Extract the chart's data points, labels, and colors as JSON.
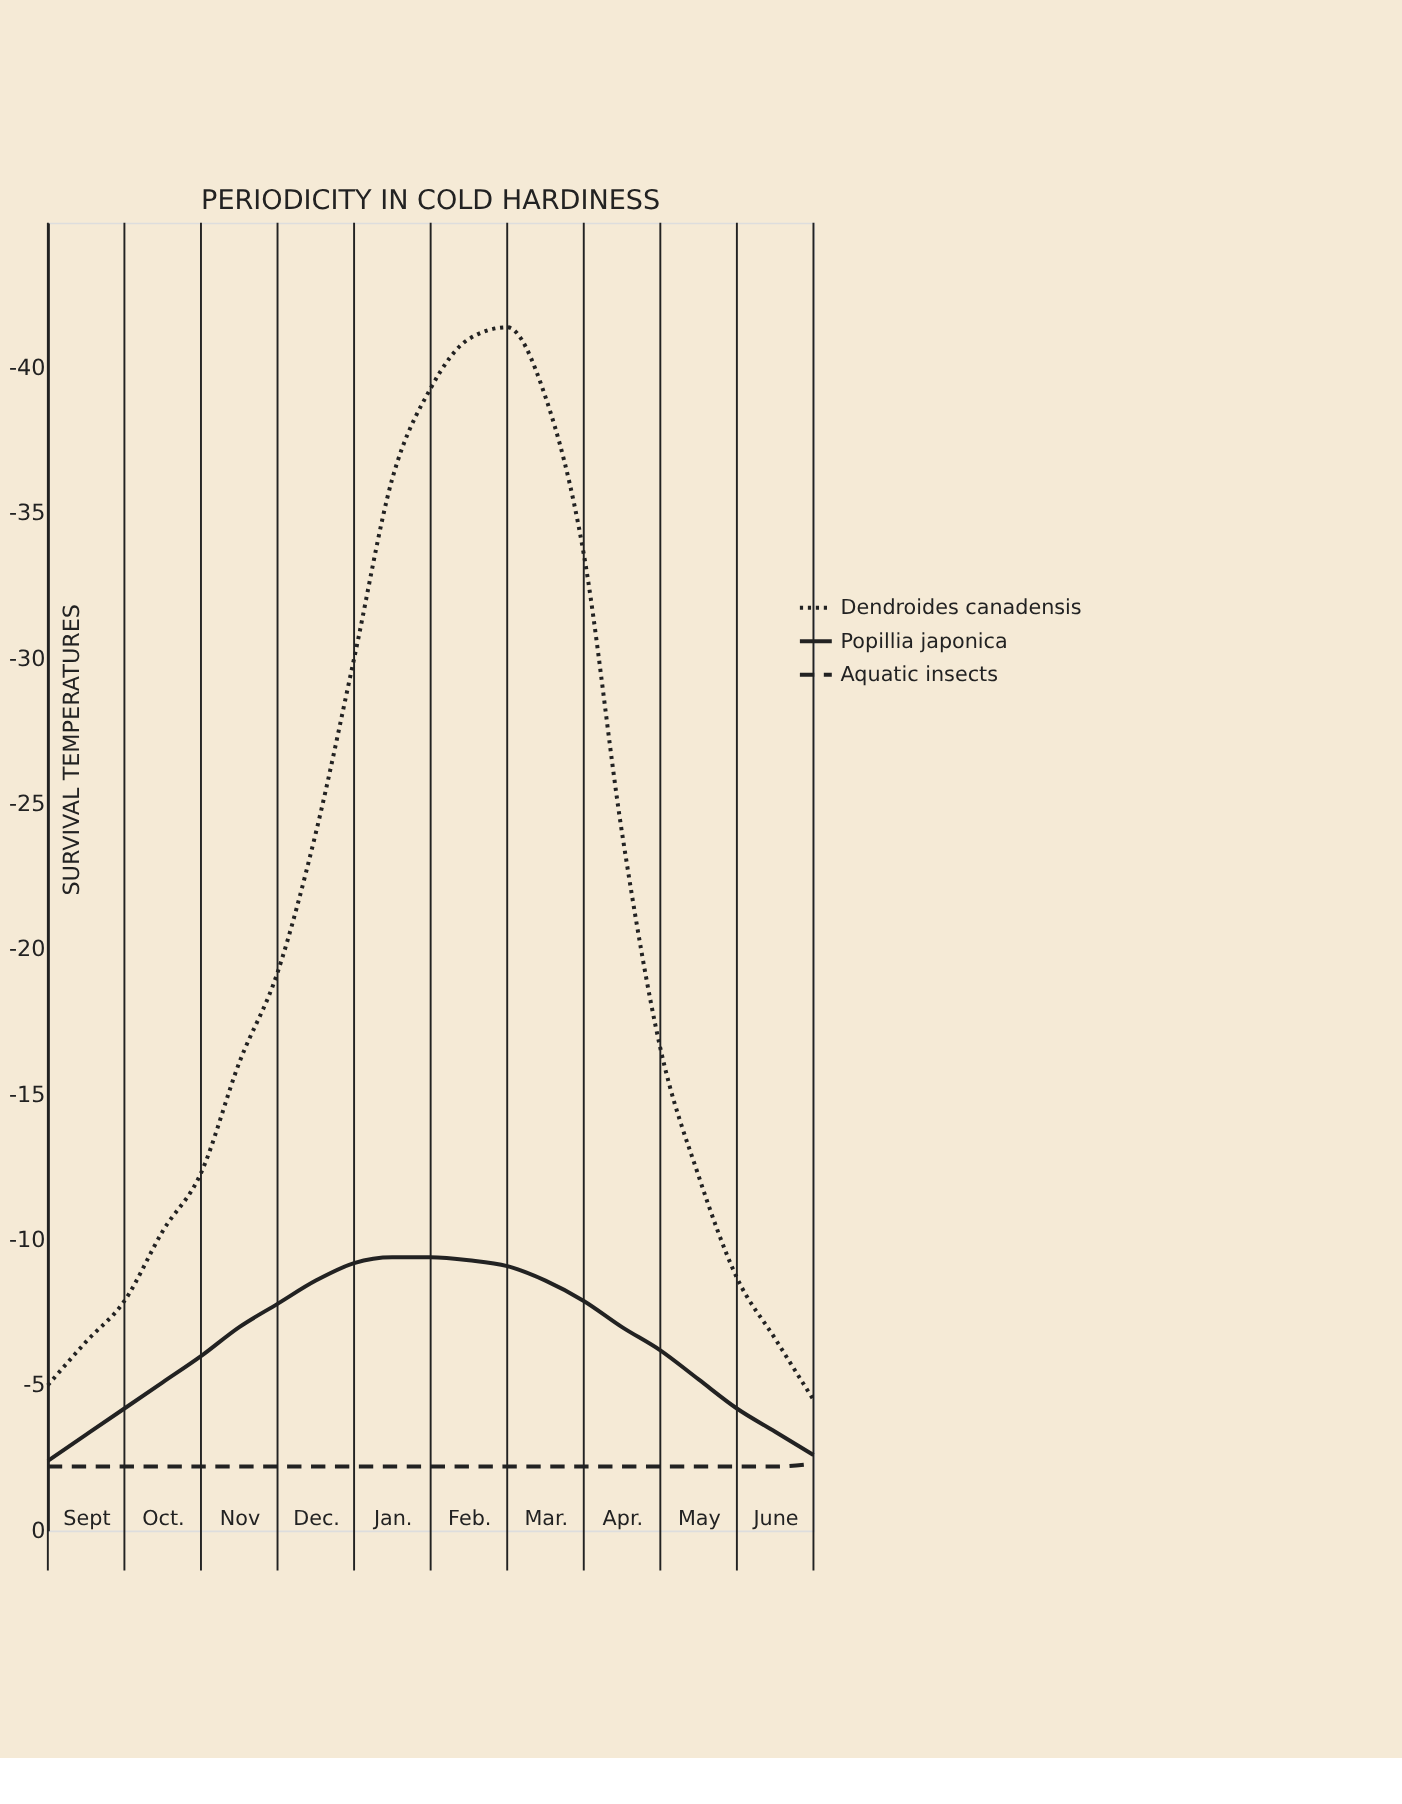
{
  "chart_data": {
    "type": "line",
    "title": "PERIODICITY IN COLD HARDINESS",
    "ylabel": "SURVIVAL TEMPERATURES",
    "categories": [
      null,
      "Sept",
      null,
      "Oct.",
      null,
      "Nov",
      null,
      "Dec.",
      null,
      "Jan.",
      null,
      "Feb.",
      null,
      "Mar.",
      null,
      "Apr.",
      null,
      "May",
      null,
      "June",
      null
    ],
    "ylim": [
      0,
      -45
    ],
    "yticks": [
      {
        "value": 0,
        "label": "0"
      },
      {
        "value": -5,
        "label": "-5"
      },
      {
        "value": -10,
        "label": "-10"
      },
      {
        "value": -15,
        "label": "-15"
      },
      {
        "value": -20,
        "label": "-20"
      },
      {
        "value": -25,
        "label": "-25"
      },
      {
        "value": -30,
        "label": "-30"
      },
      {
        "value": -35,
        "label": "-35"
      },
      {
        "value": -40,
        "label": "-40"
      }
    ],
    "grid": "x",
    "legend": "right",
    "marker": "none",
    "series": [
      {
        "name": "Dendroides canadensis",
        "color": "#222222",
        "line_style": "dotted",
        "values": [
          -5,
          -6.5,
          -7.9,
          -10.3,
          -12.3,
          -16.1,
          -19.2,
          -24,
          -30,
          -36.2,
          -39.3,
          -41,
          -41.4,
          -39,
          -33.6,
          -24,
          -16.6,
          -12.2,
          -8.7,
          -6.6,
          -4.5
        ]
      },
      {
        "name": "Popillia japonica",
        "color": "#222222",
        "line_style": "solid",
        "values": [
          -2.4,
          -3.3,
          -4.2,
          -5.1,
          -6,
          -7,
          -7.8,
          -8.6,
          -9.2,
          -9.4,
          -9.4,
          -9.3,
          -9.1,
          -8.6,
          -7.9,
          -7,
          -6.2,
          -5.2,
          -4.2,
          -3.4,
          -2.6
        ]
      },
      {
        "name": "Aquatic insects",
        "color": "#222222",
        "line_style": "dashed",
        "values": [
          -2.2,
          -2.2,
          -2.2,
          -2.2,
          -2.2,
          -2.2,
          -2.2,
          -2.2,
          -2.2,
          -2.2,
          -2.2,
          -2.2,
          -2.2,
          -2.2,
          -2.2,
          -2.2,
          -2.2,
          -2.2,
          -2.2,
          -2.2,
          -2.3
        ]
      }
    ]
  }
}
